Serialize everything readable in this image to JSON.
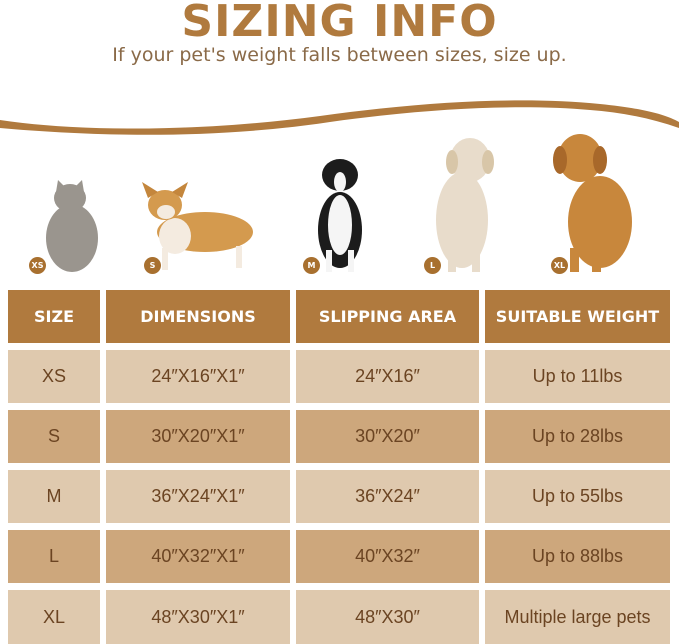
{
  "title": "SIZING INFO",
  "subtitle": "If your pet's weight falls between sizes, size up.",
  "colors": {
    "accent": "#b07a3e",
    "row_light": "#dfc9ae",
    "row_dark": "#cda77c",
    "text": "#6b4422"
  },
  "pets": [
    {
      "badge": "XS",
      "animal": "cat"
    },
    {
      "badge": "S",
      "animal": "corgi"
    },
    {
      "badge": "M",
      "animal": "border collie"
    },
    {
      "badge": "L",
      "animal": "labrador"
    },
    {
      "badge": "XL",
      "animal": "golden retriever"
    }
  ],
  "table": {
    "headers": [
      "SIZE",
      "DIMENSIONS",
      "SLIPPING AREA",
      "SUITABLE WEIGHT"
    ],
    "rows": [
      [
        "XS",
        "24″X16″X1″",
        "24″X16″",
        "Up to 11lbs"
      ],
      [
        "S",
        "30″X20″X1″",
        "30″X20″",
        "Up to 28lbs"
      ],
      [
        "M",
        "36″X24″X1″",
        "36″X24″",
        "Up to 55lbs"
      ],
      [
        "L",
        "40″X32″X1″",
        "40″X32″",
        "Up to 88lbs"
      ],
      [
        "XL",
        "48″X30″X1″",
        "48″X30″",
        "Multiple large pets"
      ]
    ]
  }
}
